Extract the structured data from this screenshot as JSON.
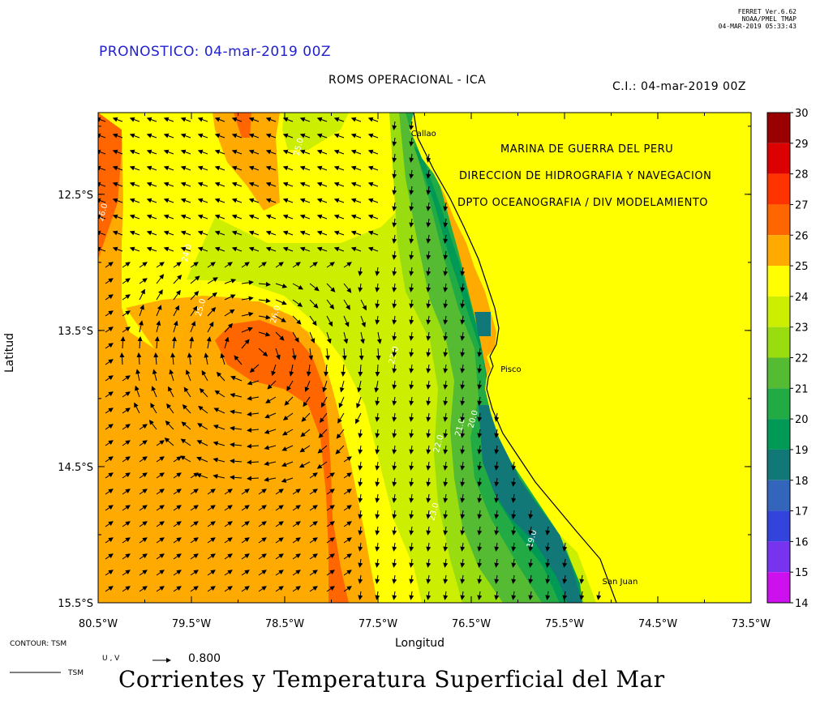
{
  "header": {
    "forecast": "PRONOSTICO: 04-mar-2019 00Z",
    "model": "ROMS OPERACIONAL - ICA",
    "ci": "C.I.: 04-mar-2019 00Z",
    "ferret_line1": "FERRET Ver.6.62",
    "ferret_line2": "NOAA/PMEL TMAP",
    "ferret_line3": "04-MAR-2019 05:33:43"
  },
  "institution": {
    "line1": "MARINA DE GUERRA DEL PERU",
    "line2": "DIRECCION DE HIDROGRAFIA Y NAVEGACION",
    "line3": "DPTO OCEANOGRAFIA / DIV MODELAMIENTO"
  },
  "places": [
    {
      "name": "Callao",
      "lon": -77.18,
      "lat": -12.05
    },
    {
      "name": "Pisco",
      "lon": -76.22,
      "lat": -13.78
    },
    {
      "name": "San Juan",
      "lon": -75.13,
      "lat": -15.34
    }
  ],
  "footer": {
    "contour_label": "CONTOUR: TSM",
    "vector_label": "U , V",
    "vector_ref": "0.800",
    "line_label": "TSM",
    "title": "Corrientes y Temperatura Superficial del Mar"
  },
  "chart_data": {
    "type": "heatmap",
    "variable": "TSM",
    "xlabel": "Longitud",
    "ylabel": "Latitud",
    "xlim": [
      -80.5,
      -73.5
    ],
    "ylim": [
      -15.5,
      -11.9
    ],
    "x_ticks": [
      "80.5°W",
      "79.5°W",
      "78.5°W",
      "77.5°W",
      "76.5°W",
      "75.5°W",
      "74.5°W",
      "73.5°W"
    ],
    "x_tick_values": [
      -80.5,
      -79.5,
      -78.5,
      -77.5,
      -76.5,
      -75.5,
      -74.5,
      -73.5
    ],
    "y_ticks": [
      "12.5°S",
      "13.5°S",
      "14.5°S",
      "15.5°S"
    ],
    "y_tick_values": [
      -12.5,
      -13.5,
      -14.5,
      -15.5
    ],
    "colorbar": {
      "ticks": [
        30,
        29,
        28,
        27,
        26,
        25,
        24,
        23,
        22,
        21,
        20,
        19,
        18,
        17,
        16,
        15,
        14
      ],
      "levels": [
        {
          "range": [
            29,
            30
          ],
          "color": "#990000"
        },
        {
          "range": [
            28,
            29
          ],
          "color": "#dd0000"
        },
        {
          "range": [
            27,
            28
          ],
          "color": "#ff3300"
        },
        {
          "range": [
            26,
            27
          ],
          "color": "#ff6600"
        },
        {
          "range": [
            25,
            26
          ],
          "color": "#ffaa00"
        },
        {
          "range": [
            24,
            25
          ],
          "color": "#ffff00"
        },
        {
          "range": [
            23,
            24
          ],
          "color": "#ccee00"
        },
        {
          "range": [
            22,
            23
          ],
          "color": "#99dd11"
        },
        {
          "range": [
            21,
            22
          ],
          "color": "#55bb33"
        },
        {
          "range": [
            20,
            21
          ],
          "color": "#22aa44"
        },
        {
          "range": [
            19,
            20
          ],
          "color": "#009955"
        },
        {
          "range": [
            18,
            19
          ],
          "color": "#117777"
        },
        {
          "range": [
            17,
            18
          ],
          "color": "#3366bb"
        },
        {
          "range": [
            16,
            17
          ],
          "color": "#3344dd"
        },
        {
          "range": [
            15,
            16
          ],
          "color": "#7733ee"
        },
        {
          "range": [
            14,
            15
          ],
          "color": "#cc11ee"
        }
      ]
    },
    "contour_labels": [
      {
        "text": "26.0",
        "lon": -80.45,
        "lat": -12.7
      },
      {
        "text": "26.0",
        "lon": -78.6,
        "lat": -13.45
      },
      {
        "text": "25.0",
        "lon": -78.35,
        "lat": -12.22
      },
      {
        "text": "24.0",
        "lon": -79.55,
        "lat": -13.0
      },
      {
        "text": "25.0",
        "lon": -79.4,
        "lat": -13.4
      },
      {
        "text": "23.0",
        "lon": -77.33,
        "lat": -13.75
      },
      {
        "text": "22.0",
        "lon": -76.85,
        "lat": -14.4
      },
      {
        "text": "21.0",
        "lon": -76.62,
        "lat": -14.28
      },
      {
        "text": "20.0",
        "lon": -76.48,
        "lat": -14.22
      },
      {
        "text": "23.0",
        "lon": -76.9,
        "lat": -14.9
      },
      {
        "text": "19.0",
        "lon": -75.85,
        "lat": -15.1
      }
    ]
  }
}
